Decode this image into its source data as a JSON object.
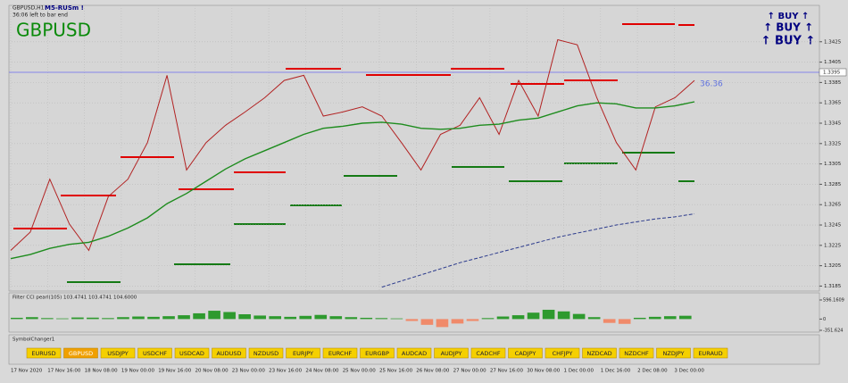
{
  "chart_header": {
    "symbol": "GBPUSD,H1",
    "indicator": "M5-RUSm !",
    "timer": "36:06 left to bar end",
    "big_symbol": "GBPUSD",
    "signals": [
      "↑ BUY ↑",
      "↑ BUY ↑",
      "↑ BUY ↑"
    ],
    "value_label": "36.36"
  },
  "chart_data": [
    {
      "type": "line",
      "series": [
        {
          "name": "GBPUSD,H1",
          "color": "#b22222",
          "values": [
            1.322,
            1.3238,
            1.329,
            1.3246,
            1.322,
            1.3273,
            1.329,
            1.3326,
            1.3392,
            1.3299,
            1.3326,
            1.3343,
            1.3356,
            1.337,
            1.3387,
            1.3392,
            1.3352,
            1.3356,
            1.3361,
            1.3352,
            1.3326,
            1.3299,
            1.3334,
            1.3343,
            1.337,
            1.3334,
            1.3387,
            1.3352,
            1.3427,
            1.3422,
            1.337,
            1.3326,
            1.3299,
            1.3361,
            1.337,
            1.3387
          ]
        },
        {
          "name": "MA",
          "color": "#1e8c1e",
          "values": [
            1.3212,
            1.3216,
            1.3222,
            1.3226,
            1.3228,
            1.3234,
            1.3242,
            1.3252,
            1.3266,
            1.3276,
            1.3288,
            1.33,
            1.331,
            1.3318,
            1.3326,
            1.3334,
            1.334,
            1.3342,
            1.3345,
            1.3346,
            1.3344,
            1.334,
            1.3339,
            1.334,
            1.3343,
            1.3344,
            1.3348,
            1.335,
            1.3356,
            1.3362,
            1.3365,
            1.3364,
            1.336,
            1.336,
            1.3362,
            1.3366
          ]
        },
        {
          "name": "MA long",
          "color": "#2b3a8c",
          "values": [
            null,
            null,
            null,
            null,
            null,
            null,
            null,
            null,
            null,
            null,
            null,
            null,
            null,
            null,
            null,
            null,
            null,
            null,
            null,
            1.3184,
            1.319,
            1.3196,
            1.3202,
            1.3208,
            1.3213,
            1.3218,
            1.3223,
            1.3228,
            1.3233,
            1.3237,
            1.3241,
            1.3245,
            1.3248,
            1.3251,
            1.3253,
            1.3256
          ]
        }
      ],
      "ylim": [
        1.3181,
        1.3459
      ],
      "yticks": [
        1.3425,
        1.3405,
        1.3385,
        1.3365,
        1.3345,
        1.3325,
        1.3305,
        1.3285,
        1.3265,
        1.3245,
        1.3225,
        1.3205,
        1.3185
      ],
      "current_price": 1.3395,
      "grid": true
    },
    {
      "type": "bar",
      "title": "Filter CCI pearl(105) 103.4741 103.4741 104.6000",
      "values": [
        40,
        60,
        30,
        20,
        50,
        45,
        30,
        60,
        80,
        70,
        90,
        120,
        180,
        260,
        220,
        150,
        110,
        90,
        70,
        100,
        130,
        90,
        60,
        40,
        30,
        20,
        -60,
        -180,
        -250,
        -140,
        -60,
        30,
        80,
        120,
        200,
        290,
        240,
        160,
        60,
        -120,
        -150,
        40,
        70,
        90,
        103.4741
      ],
      "colors": {
        "positive": "#2e9a2e",
        "negative": "#f08a6a"
      },
      "ylim": [
        -351.624,
        596.1609
      ],
      "yticks": [
        596.1609,
        0,
        -351.624
      ]
    }
  ],
  "x_axis": {
    "labels": [
      "17 Nov 2020",
      "17 Nov 16:00",
      "18 Nov 08:00",
      "19 Nov 00:00",
      "19 Nov 16:00",
      "20 Nov 08:00",
      "23 Nov 00:00",
      "23 Nov 16:00",
      "24 Nov 08:00",
      "25 Nov 00:00",
      "25 Nov 16:00",
      "26 Nov 08:00",
      "27 Nov 00:00",
      "27 Nov 16:00",
      "30 Nov 08:00",
      "1 Dec 00:00",
      "1 Dec 16:00",
      "2 Dec 08:00",
      "3 Dec 00:00"
    ]
  },
  "symbol_changer": {
    "title": "SymbolChanger1",
    "active": 1,
    "buttons": [
      "EURUSD",
      "GBPUSD",
      "USDJPY",
      "USDCHF",
      "USDCAD",
      "AUDUSD",
      "NZDUSD",
      "EURJPY",
      "EURCHF",
      "EURGBP",
      "AUDCAD",
      "AUDJPY",
      "CADCHF",
      "CADJPY",
      "CHFJPY",
      "NZDCAD",
      "NZDCHF",
      "NZDJPY",
      "EURAUD"
    ]
  }
}
